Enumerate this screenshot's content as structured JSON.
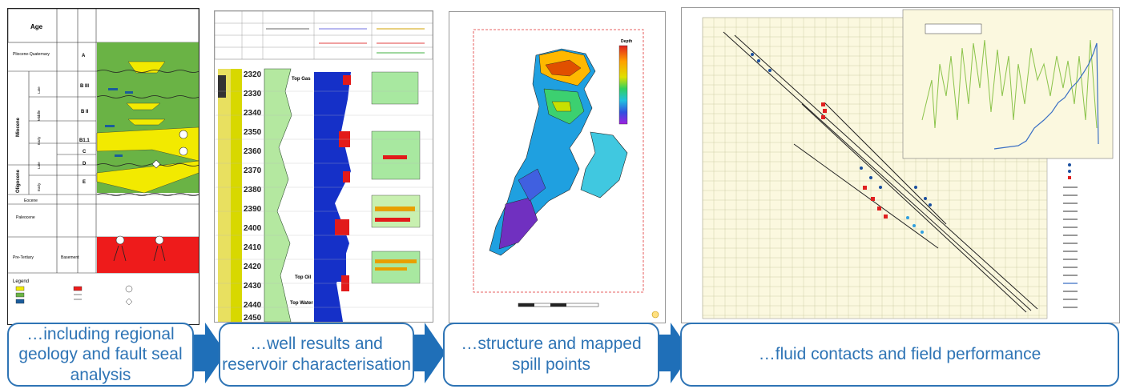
{
  "captions": {
    "step1": "…including regional geology and fault seal analysis",
    "step2": "…well results and reservoir characterisation",
    "step3": "…structure and mapped spill points",
    "step4": "…fluid contacts and field performance"
  },
  "strat_column": {
    "header_age": "Age",
    "ages": [
      "Pliocene-Quaternary",
      "Miocene",
      "Oligocene",
      "Eocene",
      "Paleocene",
      "Pre-Tertiary"
    ],
    "sub_ages": [
      "Late",
      "Middle",
      "Early",
      "Late",
      "Early"
    ],
    "units": [
      "A",
      "B III",
      "B II",
      "B1.1",
      "C",
      "D",
      "E"
    ],
    "basement_label": "Basement",
    "legend_title": "Legend"
  },
  "well_log": {
    "depth_ticks": [
      "2320",
      "2330",
      "2340",
      "2350",
      "2360",
      "2370",
      "2380",
      "2390",
      "2400",
      "2410",
      "2420",
      "2430",
      "2440",
      "2450"
    ],
    "markers": [
      "Top Gas",
      "Top Oil",
      "Top Water"
    ]
  },
  "map": {
    "legend_title": "Depth"
  },
  "colors": {
    "caption_blue": "#2e74b5",
    "arrow_blue": "#1f6fb8",
    "strat_green": "#6ab345",
    "sand_yellow": "#f2ea00",
    "basement_red": "#ee1b1b",
    "plot_bg": "#fbf8df"
  }
}
